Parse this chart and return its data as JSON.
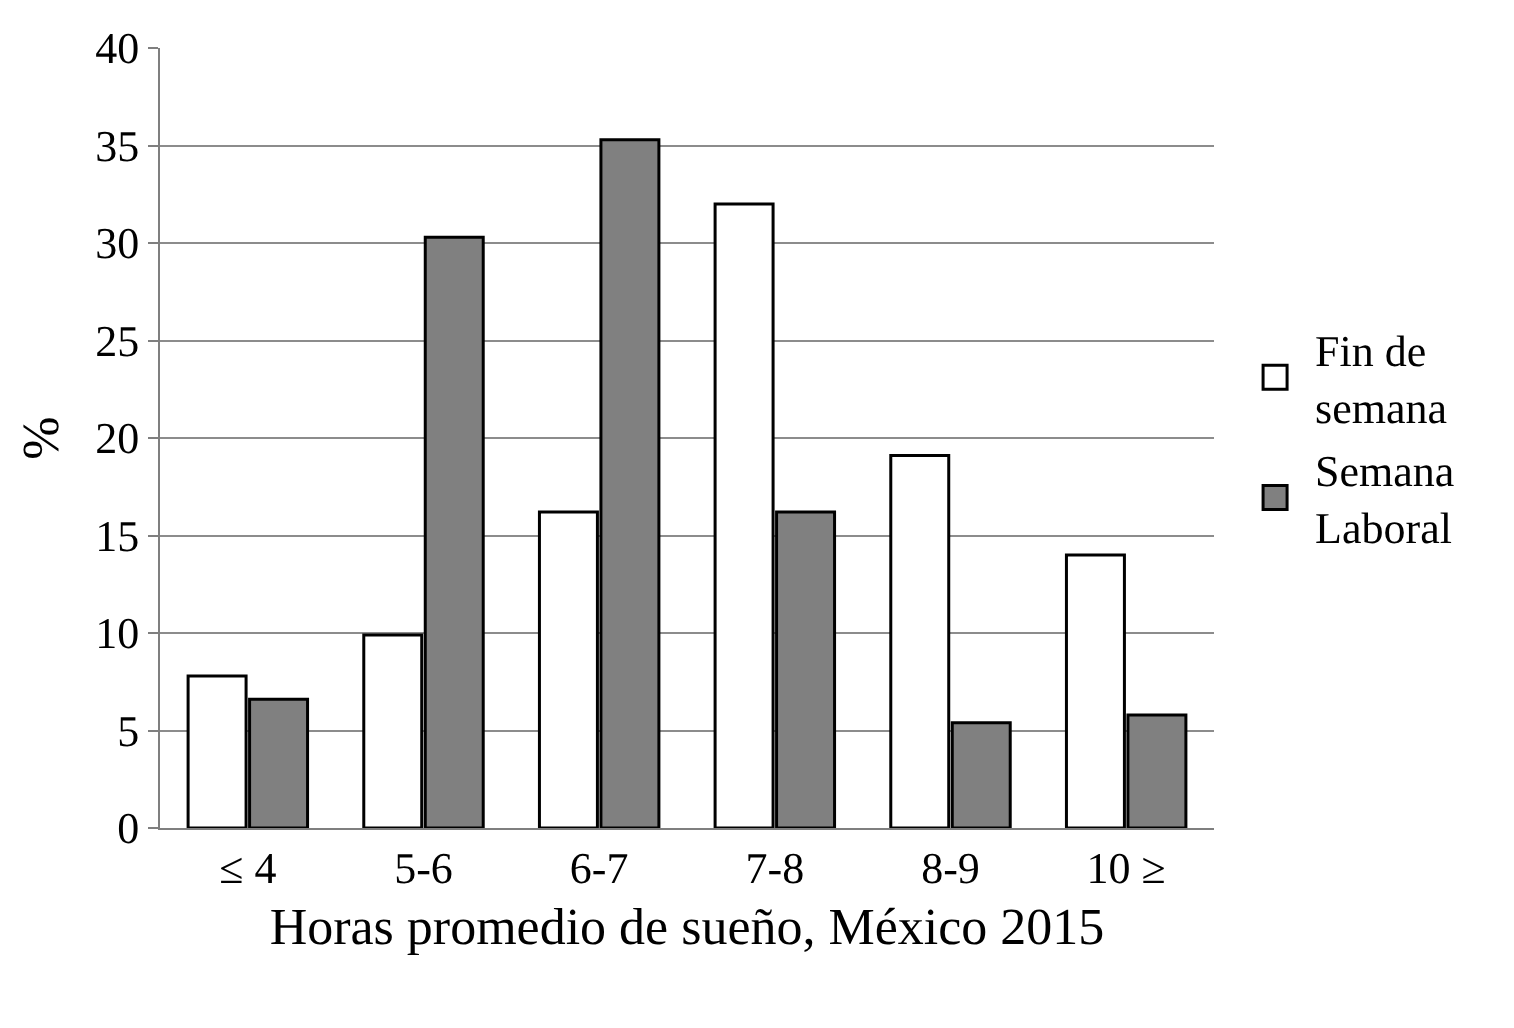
{
  "chart_data": {
    "type": "bar",
    "xlabel": "Horas promedio de sueño, México 2015",
    "ylabel": "%",
    "categories": [
      "≤ 4",
      "5-6",
      "6-7",
      "7-8",
      "8-9",
      "10 ≥"
    ],
    "series": [
      {
        "name": "Fin de semana",
        "color": "#ffffff",
        "values": [
          7.8,
          9.9,
          16.2,
          32.0,
          19.1,
          14.0
        ]
      },
      {
        "name": "Semana Laboral",
        "color": "#808080",
        "values": [
          6.6,
          30.3,
          35.3,
          16.2,
          5.4,
          5.8
        ]
      }
    ],
    "ylim": [
      0,
      40
    ],
    "yticks": [
      0,
      5,
      10,
      15,
      20,
      25,
      30,
      35,
      40
    ],
    "grid": "y",
    "legend": "right"
  }
}
